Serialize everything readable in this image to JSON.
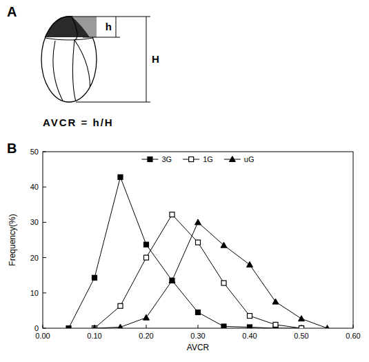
{
  "panels": {
    "a": {
      "label": "A",
      "formula": "AVCR = h/H",
      "h": "h",
      "H": "H"
    },
    "b": {
      "label": "B"
    }
  },
  "chart_data": {
    "type": "line",
    "x_label": "AVCR",
    "y_label": "Frequency(%)",
    "x": [
      0.05,
      0.1,
      0.15,
      0.2,
      0.25,
      0.3,
      0.35,
      0.4,
      0.45,
      0.5,
      0.55
    ],
    "series": [
      {
        "name": "3G",
        "color": "#000000",
        "marker": "square",
        "line_style": "solid",
        "values": [
          0,
          14.3,
          42.8,
          23.7,
          13.5,
          4.5,
          0.5,
          0.3,
          0,
          0,
          null
        ]
      },
      {
        "name": "1G",
        "color": "#000000",
        "marker": "square-open",
        "line_style": "solid",
        "values": [
          null,
          0,
          6.3,
          20,
          32.2,
          24.3,
          12.8,
          3.5,
          1,
          0,
          null
        ]
      },
      {
        "name": "uG",
        "color": "#000000",
        "marker": "triangle",
        "line_style": "solid",
        "values": [
          null,
          0,
          0.3,
          3,
          13.5,
          30,
          23.5,
          18,
          7.5,
          2.7,
          0
        ]
      }
    ],
    "xlim": [
      0,
      0.6
    ],
    "xticks": [
      {
        "value": 0,
        "label": "0.00"
      },
      {
        "value": 0.1,
        "label": "0.10"
      },
      {
        "value": 0.2,
        "label": "0.20"
      },
      {
        "value": 0.3,
        "label": "0.30"
      },
      {
        "value": 0.4,
        "label": "0.40"
      },
      {
        "value": 0.5,
        "label": "0.50"
      },
      {
        "value": 0.6,
        "label": "0.60"
      }
    ],
    "ylim": [
      0,
      50
    ],
    "yticks": [
      0,
      10,
      20,
      30,
      40,
      50
    ],
    "grid": false,
    "legend": "top"
  }
}
